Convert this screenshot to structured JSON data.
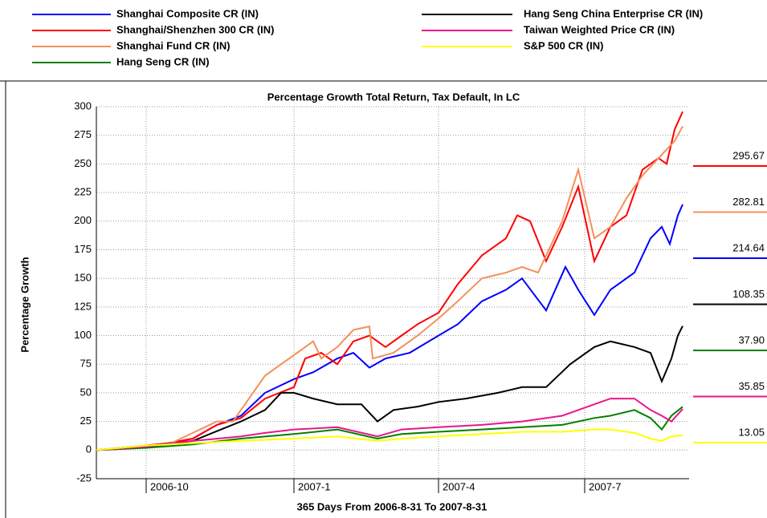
{
  "chart_data": {
    "type": "line",
    "title": "Percentage Growth Total Return, Tax Default, In LC",
    "ylabel": "Percentage Growth",
    "xlabel": "365 Days From 2006-8-31 To 2007-8-31",
    "xlim": [
      0,
      369
    ],
    "xticks": [
      {
        "value": 31,
        "label": "2006-10"
      },
      {
        "value": 123,
        "label": "2007-1"
      },
      {
        "value": 213,
        "label": "2007-4"
      },
      {
        "value": 304,
        "label": "2007-7"
      }
    ],
    "ylim": [
      -25,
      300
    ],
    "yticks": [
      -25,
      0,
      25,
      50,
      75,
      100,
      125,
      150,
      175,
      200,
      225,
      250,
      275,
      300
    ],
    "grid": true,
    "series": [
      {
        "name": "Shanghai Composite CR (IN)",
        "color": "#0000ff",
        "x": [
          0,
          15,
          31,
          45,
          60,
          75,
          90,
          105,
          123,
          135,
          150,
          160,
          170,
          180,
          195,
          213,
          225,
          240,
          255,
          265,
          280,
          292,
          300,
          310,
          320,
          335,
          345,
          352,
          357,
          362,
          365
        ],
        "values": [
          0,
          2,
          4,
          6,
          10,
          22,
          30,
          50,
          62,
          68,
          80,
          85,
          72,
          80,
          85,
          100,
          110,
          130,
          140,
          150,
          122,
          160,
          140,
          118,
          140,
          155,
          185,
          195,
          180,
          205,
          214.64
        ]
      },
      {
        "name": "Shanghai/Shenzhen 300 CR (IN)",
        "color": "#ff0000",
        "x": [
          0,
          15,
          31,
          45,
          60,
          75,
          90,
          105,
          123,
          130,
          140,
          150,
          160,
          170,
          180,
          190,
          200,
          213,
          225,
          240,
          255,
          262,
          270,
          280,
          290,
          300,
          310,
          320,
          330,
          340,
          350,
          355,
          360,
          365
        ],
        "values": [
          0,
          1,
          4,
          6,
          10,
          22,
          28,
          45,
          55,
          80,
          85,
          75,
          95,
          100,
          90,
          100,
          110,
          120,
          145,
          170,
          185,
          205,
          200,
          165,
          195,
          230,
          165,
          195,
          205,
          245,
          255,
          250,
          280,
          295.67
        ]
      },
      {
        "name": "Shanghai Fund CR (IN)",
        "color": "#f4905a",
        "x": [
          0,
          31,
          45,
          60,
          75,
          85,
          95,
          105,
          115,
          125,
          135,
          140,
          150,
          160,
          170,
          172,
          185,
          200,
          213,
          225,
          240,
          255,
          265,
          275,
          290,
          300,
          310,
          320,
          330,
          340,
          350,
          360,
          365
        ],
        "values": [
          0,
          3,
          5,
          15,
          25,
          25,
          45,
          65,
          75,
          85,
          95,
          80,
          90,
          105,
          108,
          80,
          85,
          100,
          115,
          130,
          150,
          155,
          160,
          155,
          200,
          245,
          185,
          195,
          220,
          240,
          255,
          270,
          282.81
        ]
      },
      {
        "name": "Hang Seng CR (IN)",
        "color": "#008000",
        "x": [
          0,
          31,
          60,
          90,
          123,
          150,
          175,
          190,
          213,
          240,
          265,
          290,
          310,
          320,
          335,
          345,
          352,
          358,
          365
        ],
        "values": [
          0,
          2,
          5,
          10,
          14,
          18,
          10,
          14,
          16,
          18,
          20,
          22,
          28,
          30,
          35,
          28,
          18,
          30,
          37.9
        ],
        "value_labels": {
          "18": "37.90"
        }
      },
      {
        "name": "Hang Seng China Enterprise CR (IN)",
        "color": "#000000",
        "x": [
          0,
          31,
          60,
          90,
          105,
          115,
          123,
          135,
          150,
          165,
          175,
          185,
          200,
          213,
          230,
          250,
          265,
          280,
          295,
          310,
          320,
          335,
          345,
          352,
          358,
          362,
          365
        ],
        "values": [
          0,
          3,
          8,
          25,
          35,
          50,
          50,
          45,
          40,
          40,
          25,
          35,
          38,
          42,
          45,
          50,
          55,
          55,
          75,
          90,
          95,
          90,
          85,
          60,
          80,
          100,
          108.35
        ]
      },
      {
        "name": "Taiwan Weighted Price CR (IN)",
        "color": "#e8168c",
        "x": [
          0,
          31,
          60,
          90,
          105,
          123,
          150,
          175,
          190,
          213,
          240,
          265,
          290,
          310,
          320,
          335,
          345,
          352,
          358,
          365
        ],
        "values": [
          0,
          3,
          8,
          12,
          15,
          18,
          20,
          12,
          18,
          20,
          22,
          25,
          30,
          40,
          45,
          45,
          35,
          30,
          25,
          35.85
        ]
      },
      {
        "name": "S&P 500 CR (IN)",
        "color": "#ffff00",
        "x": [
          0,
          31,
          60,
          90,
          123,
          150,
          175,
          190,
          213,
          240,
          265,
          290,
          310,
          320,
          335,
          345,
          352,
          358,
          365
        ],
        "values": [
          0,
          4,
          6,
          8,
          10,
          12,
          8,
          10,
          12,
          14,
          16,
          16,
          18,
          18,
          15,
          10,
          8,
          12,
          13.05
        ]
      }
    ]
  }
}
